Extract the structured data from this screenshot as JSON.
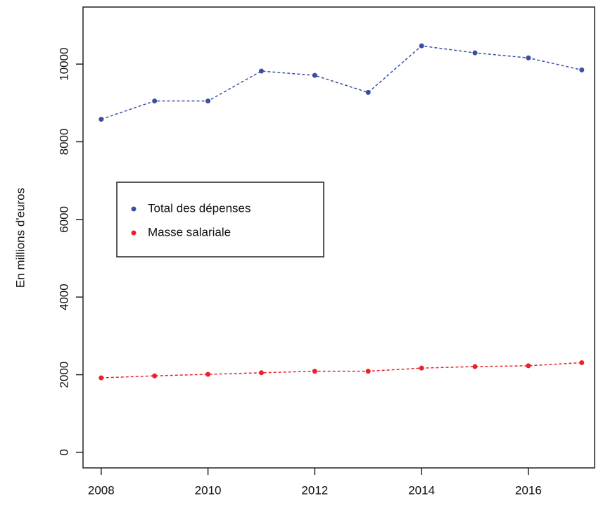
{
  "chart_data": {
    "type": "line",
    "y_label": "En millions d'euros",
    "x": [
      2008,
      2009,
      2010,
      2011,
      2012,
      2013,
      2014,
      2015,
      2016,
      2017
    ],
    "series": [
      {
        "name": "Total des dépenses",
        "color": "#3a4fa0",
        "values": [
          8580,
          9050,
          9050,
          9820,
          9710,
          9270,
          10470,
          10290,
          10160,
          9850
        ]
      },
      {
        "name": "Masse salariale",
        "color": "#e8222a",
        "values": [
          1920,
          1970,
          2010,
          2050,
          2090,
          2090,
          2170,
          2210,
          2230,
          2310
        ]
      }
    ],
    "xlim": [
      2007.66,
      2017.24
    ],
    "xticks": [
      2008,
      2010,
      2012,
      2014,
      2016
    ],
    "ylim": [
      -400,
      11470
    ],
    "yticks": [
      0,
      2000,
      4000,
      6000,
      8000,
      10000
    ],
    "legend_position": "left",
    "line_style": "dashed"
  }
}
